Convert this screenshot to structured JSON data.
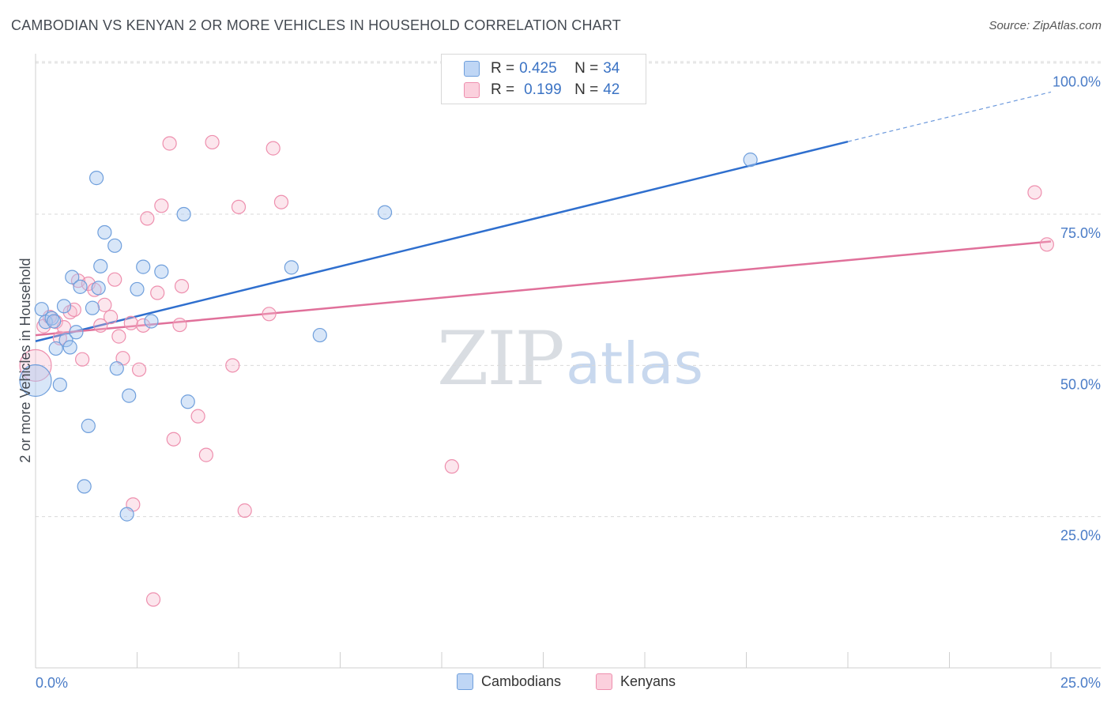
{
  "header": {
    "title": "CAMBODIAN VS KENYAN 2 OR MORE VEHICLES IN HOUSEHOLD CORRELATION CHART",
    "source": "Source: ZipAtlas.com"
  },
  "watermark": {
    "zip": "ZIP",
    "atlas": "atlas"
  },
  "legend": {
    "rows": [
      {
        "r_label": "R = ",
        "r_value": "0.425",
        "n_label": "N = ",
        "n_value": "34",
        "color": "#a9c8f0"
      },
      {
        "r_label": "R = ",
        "r_value": "0.199",
        "n_label": "N = ",
        "n_value": "42",
        "color": "#f7b8cb"
      }
    ]
  },
  "bottom_legend": {
    "cambodians": "Cambodians",
    "kenyans": "Kenyans"
  },
  "chart_data": {
    "type": "scatter",
    "title": "CAMBODIAN VS KENYAN 2 OR MORE VEHICLES IN HOUSEHOLD CORRELATION CHART",
    "ylabel": "2 or more Vehicles in Household",
    "xlabel": "",
    "xlim": [
      0,
      25
    ],
    "ylim": [
      0,
      105
    ],
    "x_tick_labels": [
      "0.0%",
      "25.0%"
    ],
    "y_tick_labels": [
      "100.0%",
      "75.0%",
      "50.0%",
      "25.0%"
    ],
    "y_ticks": [
      100,
      75,
      50,
      25
    ],
    "colors": {
      "cambodians": "#6f9fdc",
      "kenyans": "#ee8fae",
      "cambodians_line": "#2f6fce",
      "kenyans_line": "#e0709a"
    },
    "series": [
      {
        "name": "Cambodians",
        "R": 0.425,
        "N": 34,
        "trend": {
          "x0": 0,
          "y0": 54.0,
          "x1": 20.0,
          "y1": 87.0,
          "dash_to_x": 25,
          "dash_to_y": 95.2
        },
        "points": [
          {
            "x": 0.15,
            "y": 59.3
          },
          {
            "x": 0.25,
            "y": 57.2
          },
          {
            "x": 0.4,
            "y": 57.8
          },
          {
            "x": 0.45,
            "y": 57.3
          },
          {
            "x": 0.5,
            "y": 52.8
          },
          {
            "x": 0.0,
            "y": 47.5,
            "big": true
          },
          {
            "x": 0.6,
            "y": 46.8
          },
          {
            "x": 0.7,
            "y": 59.8
          },
          {
            "x": 0.75,
            "y": 54.2
          },
          {
            "x": 0.85,
            "y": 53.0
          },
          {
            "x": 0.9,
            "y": 64.6
          },
          {
            "x": 1.0,
            "y": 55.5
          },
          {
            "x": 1.1,
            "y": 63.0
          },
          {
            "x": 1.2,
            "y": 30.0
          },
          {
            "x": 1.3,
            "y": 40.0
          },
          {
            "x": 1.4,
            "y": 59.5
          },
          {
            "x": 1.5,
            "y": 81.0
          },
          {
            "x": 1.55,
            "y": 62.8
          },
          {
            "x": 1.6,
            "y": 66.4
          },
          {
            "x": 1.7,
            "y": 72.0
          },
          {
            "x": 1.95,
            "y": 69.8
          },
          {
            "x": 2.0,
            "y": 49.5
          },
          {
            "x": 2.25,
            "y": 25.4
          },
          {
            "x": 2.3,
            "y": 45.0
          },
          {
            "x": 2.5,
            "y": 62.6
          },
          {
            "x": 2.65,
            "y": 66.3
          },
          {
            "x": 2.85,
            "y": 57.3
          },
          {
            "x": 3.1,
            "y": 65.5
          },
          {
            "x": 3.65,
            "y": 75.0
          },
          {
            "x": 3.75,
            "y": 44.0
          },
          {
            "x": 6.3,
            "y": 66.2
          },
          {
            "x": 7.0,
            "y": 55.0
          },
          {
            "x": 8.6,
            "y": 75.3
          },
          {
            "x": 17.6,
            "y": 84.0
          }
        ]
      },
      {
        "name": "Kenyans",
        "R": 0.199,
        "N": 42,
        "trend": {
          "x0": 0,
          "y0": 55.0,
          "x1": 25,
          "y1": 70.5
        },
        "points": [
          {
            "x": 0.0,
            "y": 50.0,
            "big": true
          },
          {
            "x": 0.2,
            "y": 56.5
          },
          {
            "x": 0.35,
            "y": 58.0
          },
          {
            "x": 0.5,
            "y": 57.2
          },
          {
            "x": 0.6,
            "y": 54.5
          },
          {
            "x": 0.7,
            "y": 56.3
          },
          {
            "x": 0.85,
            "y": 58.8
          },
          {
            "x": 0.95,
            "y": 59.2
          },
          {
            "x": 1.05,
            "y": 64.0
          },
          {
            "x": 1.15,
            "y": 51.0
          },
          {
            "x": 1.3,
            "y": 63.5
          },
          {
            "x": 1.45,
            "y": 62.5
          },
          {
            "x": 1.6,
            "y": 56.6
          },
          {
            "x": 1.7,
            "y": 60.0
          },
          {
            "x": 1.85,
            "y": 58.0
          },
          {
            "x": 1.95,
            "y": 64.2
          },
          {
            "x": 2.05,
            "y": 54.8
          },
          {
            "x": 2.15,
            "y": 51.2
          },
          {
            "x": 2.35,
            "y": 57.0
          },
          {
            "x": 2.4,
            "y": 27.0
          },
          {
            "x": 2.55,
            "y": 49.3
          },
          {
            "x": 2.65,
            "y": 56.6
          },
          {
            "x": 2.75,
            "y": 74.3
          },
          {
            "x": 2.9,
            "y": 11.3
          },
          {
            "x": 3.0,
            "y": 62.0
          },
          {
            "x": 3.1,
            "y": 76.4
          },
          {
            "x": 3.3,
            "y": 86.7
          },
          {
            "x": 3.4,
            "y": 37.8
          },
          {
            "x": 3.55,
            "y": 56.7
          },
          {
            "x": 3.6,
            "y": 63.1
          },
          {
            "x": 4.0,
            "y": 41.6
          },
          {
            "x": 4.2,
            "y": 35.2
          },
          {
            "x": 4.35,
            "y": 86.9
          },
          {
            "x": 4.85,
            "y": 50.0
          },
          {
            "x": 5.0,
            "y": 76.2
          },
          {
            "x": 5.15,
            "y": 26.0
          },
          {
            "x": 5.75,
            "y": 58.5
          },
          {
            "x": 5.85,
            "y": 85.9
          },
          {
            "x": 6.05,
            "y": 77.0
          },
          {
            "x": 10.25,
            "y": 33.3
          },
          {
            "x": 24.6,
            "y": 78.6
          },
          {
            "x": 24.9,
            "y": 70.0
          }
        ]
      }
    ]
  }
}
